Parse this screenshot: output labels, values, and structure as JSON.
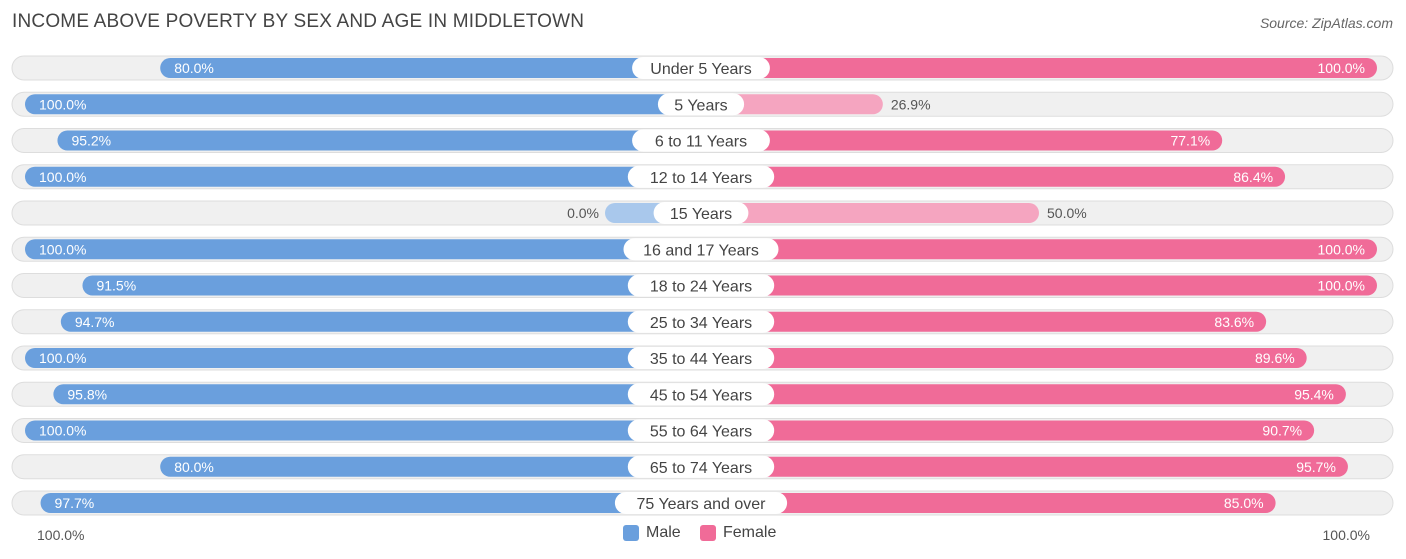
{
  "title": "INCOME ABOVE POVERTY BY SEX AND AGE IN MIDDLETOWN",
  "source": "Source: ZipAtlas.com",
  "colors": {
    "male": "#6a9fdd",
    "male_light": "#a9c8ec",
    "female": "#f06b98",
    "female_light": "#f5a5c0",
    "track": "#f0f0f0",
    "track_border": "#dddddd"
  },
  "legend": {
    "male": "Male",
    "female": "Female"
  },
  "axis": {
    "left_label": "100.0%",
    "right_label": "100.0%"
  },
  "chart_data": {
    "type": "bar",
    "orientation": "horizontal-diverging",
    "title": "INCOME ABOVE POVERTY BY SEX AND AGE IN MIDDLETOWN",
    "xlim": [
      0,
      100
    ],
    "categories": [
      "Under 5 Years",
      "5 Years",
      "6 to 11 Years",
      "12 to 14 Years",
      "15 Years",
      "16 and 17 Years",
      "18 to 24 Years",
      "25 to 34 Years",
      "35 to 44 Years",
      "45 to 54 Years",
      "55 to 64 Years",
      "65 to 74 Years",
      "75 Years and over"
    ],
    "series": [
      {
        "name": "Male",
        "values": [
          80.0,
          100.0,
          95.2,
          100.0,
          0.0,
          100.0,
          91.5,
          94.7,
          100.0,
          95.8,
          100.0,
          80.0,
          97.7
        ],
        "labels": [
          "80.0%",
          "100.0%",
          "95.2%",
          "100.0%",
          "0.0%",
          "100.0%",
          "91.5%",
          "94.7%",
          "100.0%",
          "95.8%",
          "100.0%",
          "80.0%",
          "97.7%"
        ]
      },
      {
        "name": "Female",
        "values": [
          100.0,
          26.9,
          77.1,
          86.4,
          50.0,
          100.0,
          100.0,
          83.6,
          89.6,
          95.4,
          90.7,
          95.7,
          85.0
        ],
        "labels": [
          "100.0%",
          "26.9%",
          "77.1%",
          "86.4%",
          "50.0%",
          "100.0%",
          "100.0%",
          "83.6%",
          "89.6%",
          "95.4%",
          "90.7%",
          "95.7%",
          "85.0%"
        ]
      }
    ]
  }
}
